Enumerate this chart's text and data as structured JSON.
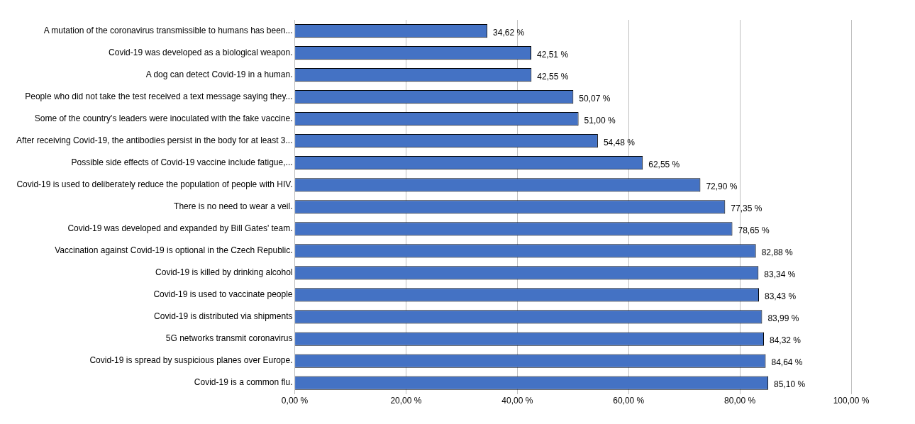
{
  "chart_data": {
    "type": "bar",
    "orientation": "horizontal",
    "categories": [
      "A mutation of the coronavirus transmissible to humans has been...",
      "Covid-19 was developed as a biological weapon.",
      "A dog can detect Covid-19 in a human.",
      "People who did not take the test received a text message saying they...",
      "Some of the country's leaders were inoculated with the fake vaccine.",
      "After receiving Covid-19, the antibodies persist in the body for at least 3...",
      "Possible side effects of Covid-19 vaccine include fatigue,...",
      "Covid-19 is used to deliberately reduce the population of people with HIV.",
      "There is no need to wear a veil.",
      "Covid-19 was developed and expanded by Bill Gates' team.",
      "Vaccination against Covid-19 is optional in the Czech Republic.",
      "Covid-19 is killed by drinking alcohol",
      "Covid-19 is used to vaccinate people",
      "Covid-19 is distributed via shipments",
      "5G networks transmit coronavirus",
      "Covid-19 is spread by suspicious planes over Europe.",
      "Covid-19 is a common flu."
    ],
    "values": [
      34.62,
      42.51,
      42.55,
      50.07,
      51.0,
      54.48,
      62.55,
      72.9,
      77.35,
      78.65,
      82.88,
      83.34,
      83.43,
      83.99,
      84.32,
      84.64,
      85.1
    ],
    "value_labels": [
      "34,62 %",
      "42,51 %",
      "42,55 %",
      "50,07 %",
      "51,00 %",
      "54,48 %",
      "62,55 %",
      "72,90 %",
      "77,35 %",
      "78,65 %",
      "82,88 %",
      "83,34 %",
      "83,43 %",
      "83,99 %",
      "84,32 %",
      "84,64 %",
      "85,10 %"
    ],
    "color": "#4472c4",
    "xlim": [
      0,
      100
    ],
    "xticks": [
      {
        "value": 0,
        "label": "0,00 %"
      },
      {
        "value": 20,
        "label": "20,00 %"
      },
      {
        "value": 40,
        "label": "40,00 %"
      },
      {
        "value": 60,
        "label": "60,00 %"
      },
      {
        "value": 80,
        "label": "80,00 %"
      },
      {
        "value": 100,
        "label": "100,00 %"
      }
    ],
    "grid": "x",
    "legend": false
  }
}
